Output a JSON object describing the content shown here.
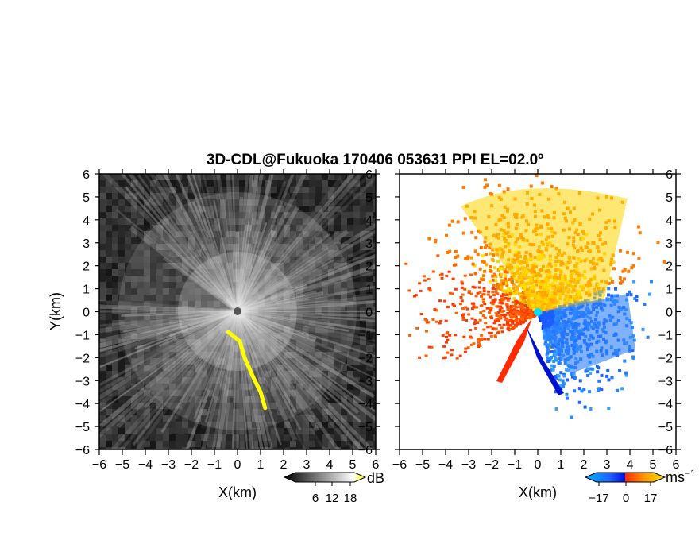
{
  "title": "3D-CDL@Fukuoka 170406 053631 PPI EL=02.0º",
  "chart_data": [
    {
      "type": "heatmap",
      "panel": "reflectivity",
      "xlabel": "X(km)",
      "ylabel": "Y(km)",
      "xlim": [
        -6,
        6
      ],
      "ylim": [
        -6,
        6
      ],
      "xticks": [
        "−6",
        "−5",
        "−4",
        "−3",
        "−2",
        "−1",
        "0",
        "1",
        "2",
        "3",
        "4",
        "5",
        "6"
      ],
      "yticks": [
        "6",
        "5",
        "4",
        "3",
        "2",
        "1",
        "0",
        "−1",
        "−2",
        "−3",
        "−4",
        "−5",
        "−6"
      ],
      "colorbar": {
        "unit": "dB",
        "ticks": [
          "6",
          "12",
          "18"
        ],
        "range": [
          0,
          21
        ],
        "colors": [
          "#000000",
          "#ffffff",
          "#ffff00"
        ]
      },
      "features": [
        {
          "kind": "yellow_echo_band",
          "points": [
            [
              -0.4,
              -0.9
            ],
            [
              0.1,
              -1.3
            ],
            [
              0.3,
              -2.0
            ],
            [
              0.7,
              -2.9
            ],
            [
              1.0,
              -3.5
            ],
            [
              1.2,
              -4.2
            ]
          ]
        }
      ]
    },
    {
      "type": "heatmap",
      "panel": "doppler_velocity",
      "xlabel": "X(km)",
      "xlim": [
        -6,
        6
      ],
      "ylim": [
        -6,
        6
      ],
      "xticks": [
        "−6",
        "−5",
        "−4",
        "−3",
        "−2",
        "−1",
        "0",
        "1",
        "2",
        "3",
        "4",
        "5",
        "6"
      ],
      "colorbar": {
        "unit": "ms",
        "unit_exponent": "−1",
        "ticks": [
          "−17",
          "0",
          "17"
        ],
        "range": [
          -20,
          20
        ],
        "colors": [
          "#00b4ff",
          "#1f64ff",
          "#0010e0",
          "#ff2a00",
          "#ff9a00",
          "#ffe400"
        ]
      }
    }
  ]
}
